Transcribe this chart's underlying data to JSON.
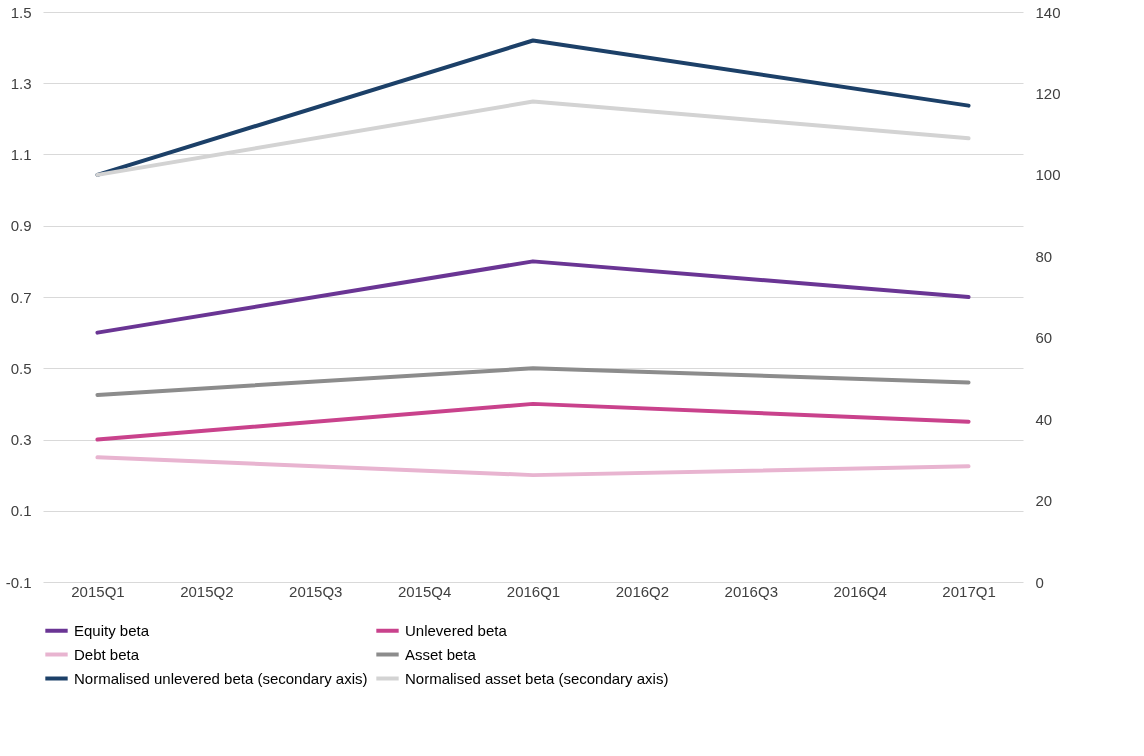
{
  "chart_data": {
    "type": "line",
    "categories": [
      "2015Q1",
      "2015Q2",
      "2015Q3",
      "2015Q4",
      "2016Q1",
      "2016Q2",
      "2016Q3",
      "2016Q4",
      "2017Q1"
    ],
    "series": [
      {
        "name": "Equity beta",
        "color": "#6a3594",
        "values": [
          0.6,
          null,
          null,
          null,
          0.8,
          null,
          null,
          null,
          0.7
        ]
      },
      {
        "name": "Unlevered beta",
        "color": "#c9428c",
        "values": [
          0.3,
          null,
          null,
          null,
          0.4,
          null,
          null,
          null,
          0.35
        ]
      },
      {
        "name": "Debt beta",
        "color": "#e8b4d0",
        "values": [
          0.25,
          null,
          null,
          null,
          0.2,
          null,
          null,
          null,
          0.225
        ]
      },
      {
        "name": "Asset beta",
        "color": "#8c8c8c",
        "values": [
          0.425,
          null,
          null,
          null,
          0.5,
          null,
          null,
          null,
          0.46
        ]
      },
      {
        "name": "Normalised unlevered beta (secondary axis)",
        "color": "#1c4068",
        "axis": "y2",
        "values": [
          100,
          null,
          null,
          null,
          133,
          null,
          null,
          null,
          117
        ]
      },
      {
        "name": "Normalised asset beta  (secondary axis)",
        "color": "#d3d3d3",
        "axis": "y2",
        "values": [
          100,
          null,
          null,
          null,
          118,
          null,
          null,
          null,
          109
        ]
      }
    ],
    "ylim": [
      -0.1,
      1.5
    ],
    "yticks": [
      -0.1,
      0.1,
      0.3,
      0.5,
      0.7,
      0.9,
      1.1,
      1.3,
      1.5
    ],
    "y2lim": [
      0,
      140
    ],
    "y2ticks": [
      0,
      20,
      40,
      60,
      80,
      100,
      120,
      140
    ],
    "grid": "y",
    "legend": "bottom",
    "marker": "none",
    "line_style": "solid"
  }
}
